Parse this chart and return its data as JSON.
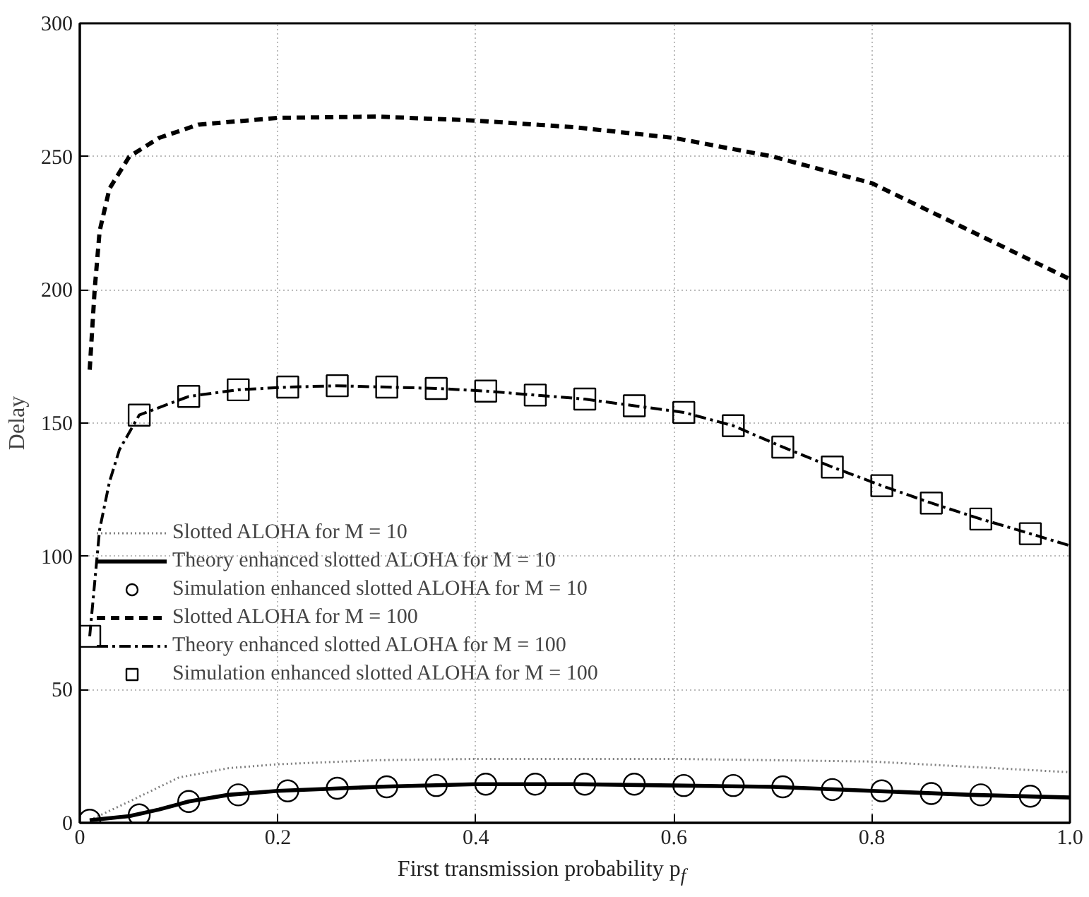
{
  "chart_data": {
    "type": "line",
    "xlabel": "First transmission probability p$_{f}$",
    "ylabel": "Delay",
    "xlim": [
      0,
      1.0
    ],
    "ylim": [
      0,
      300
    ],
    "xticks": [
      0,
      0.2,
      0.4,
      0.6,
      0.8,
      {
        "value": 1.0,
        "label": "1.0"
      }
    ],
    "yticks": [
      0,
      50,
      100,
      150,
      200,
      250,
      300
    ],
    "grid": true,
    "legend": "left",
    "series": [
      {
        "name": "Slotted ALOHA for M = 10",
        "type": "line",
        "line_style": "dotted",
        "color": "#808080",
        "x": [
          0.01,
          0.05,
          0.1,
          0.15,
          0.2,
          0.3,
          0.4,
          0.5,
          0.6,
          0.7,
          0.8,
          0.85,
          0.9,
          1.0
        ],
        "values": [
          1,
          8,
          17,
          20.5,
          22,
          23.5,
          24,
          24,
          24,
          23.5,
          23,
          22,
          21,
          19
        ]
      },
      {
        "name": "Theory enhanced slotted ALOHA for M = 10",
        "type": "line",
        "line_style": "solid",
        "color": "#000000",
        "x": [
          0.01,
          0.05,
          0.08,
          0.11,
          0.15,
          0.2,
          0.3,
          0.4,
          0.5,
          0.6,
          0.7,
          0.8,
          0.9,
          1.0
        ],
        "values": [
          1,
          2.5,
          5,
          8,
          10.5,
          12,
          13.5,
          14.5,
          14.5,
          14,
          13.5,
          12,
          10.5,
          9.5
        ]
      },
      {
        "name": "Simulation enhanced slotted ALOHA for M = 10",
        "type": "scatter",
        "marker": "circle",
        "color": "#000000",
        "x": [
          0.01,
          0.06,
          0.11,
          0.16,
          0.21,
          0.26,
          0.31,
          0.36,
          0.41,
          0.46,
          0.51,
          0.56,
          0.61,
          0.66,
          0.71,
          0.76,
          0.81,
          0.86,
          0.91,
          0.96
        ],
        "values": [
          1,
          3,
          8,
          10.5,
          12,
          13,
          13.5,
          14,
          14.5,
          14.5,
          14.5,
          14.5,
          14,
          14,
          13.5,
          12.5,
          12,
          11,
          10.5,
          10
        ]
      },
      {
        "name": "Slotted ALOHA for M = 100",
        "type": "line",
        "line_style": "dashed",
        "color": "#000000",
        "x": [
          0.01,
          0.015,
          0.02,
          0.03,
          0.05,
          0.08,
          0.12,
          0.2,
          0.3,
          0.4,
          0.5,
          0.6,
          0.7,
          0.8,
          0.9,
          1.0
        ],
        "values": [
          170,
          200,
          222,
          238,
          250,
          257,
          262,
          264.5,
          265,
          263.5,
          261,
          257,
          250,
          240,
          222,
          204
        ]
      },
      {
        "name": "Theory enhanced slotted ALOHA for M = 100",
        "type": "line",
        "line_style": "dashdot",
        "color": "#000000",
        "x": [
          0.01,
          0.02,
          0.03,
          0.04,
          0.06,
          0.11,
          0.16,
          0.21,
          0.26,
          0.31,
          0.36,
          0.41,
          0.46,
          0.51,
          0.56,
          0.61,
          0.66,
          0.71,
          0.76,
          0.81,
          0.86,
          0.91,
          0.96,
          1.0
        ],
        "values": [
          70,
          110,
          128,
          140,
          153,
          160,
          162.5,
          163.5,
          164,
          163.5,
          163,
          162,
          160.5,
          159,
          156.5,
          154,
          149,
          141,
          133.5,
          126.5,
          120,
          114,
          108.5,
          104
        ]
      },
      {
        "name": "Simulation enhanced slotted ALOHA for M = 100",
        "type": "scatter",
        "marker": "square",
        "color": "#000000",
        "x": [
          0.01,
          0.06,
          0.11,
          0.16,
          0.21,
          0.26,
          0.31,
          0.36,
          0.41,
          0.46,
          0.51,
          0.56,
          0.61,
          0.66,
          0.71,
          0.76,
          0.81,
          0.86,
          0.91,
          0.96
        ],
        "values": [
          70,
          153,
          160,
          162.5,
          163.5,
          164,
          163.5,
          163,
          162,
          160.5,
          159,
          156.5,
          154,
          149,
          141,
          133.5,
          126.5,
          120,
          114,
          108.5
        ]
      }
    ]
  }
}
